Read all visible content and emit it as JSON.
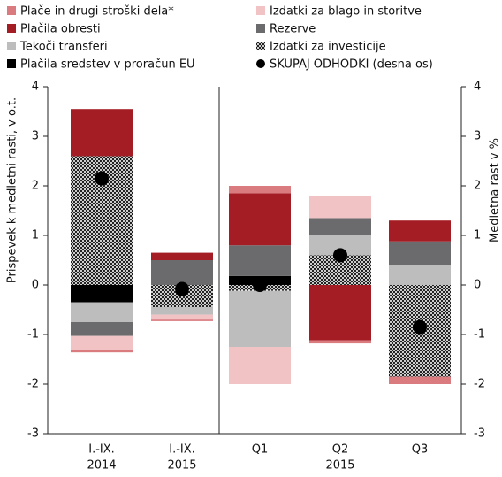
{
  "chart_data": {
    "type": "bar",
    "stacked": true,
    "categories": [
      "I.-IX.",
      "I.-IX.",
      "Q1",
      "Q2",
      "Q3"
    ],
    "category_group_labels": [
      "2014",
      "2015",
      null,
      "2015",
      null
    ],
    "ylabel": "Prispevek k medletni rasti, v o.t.",
    "y2label": "Medletna rast v %",
    "ylim": [
      -3,
      4
    ],
    "yticks": [
      -3,
      -2,
      -1,
      0,
      1,
      2,
      3,
      4
    ],
    "y2lim": [
      -3,
      4
    ],
    "y2ticks": [
      -3,
      -2,
      -1,
      0,
      1,
      2,
      3,
      4
    ],
    "series": [
      {
        "name": "Plače in drugi stroški dela*",
        "color": "#d97b7f",
        "values": [
          -0.05,
          -0.03,
          0.15,
          -0.06,
          -0.15
        ]
      },
      {
        "name": "Izdatki za blago in storitve",
        "color": "#f2c3c4",
        "values": [
          -0.28,
          -0.1,
          -0.75,
          0.45,
          0
        ]
      },
      {
        "name": "Plačila obresti",
        "color": "#a51d24",
        "values": [
          0.95,
          0.15,
          1.05,
          -1.12,
          0.42
        ]
      },
      {
        "name": "Rezerve",
        "color": "#6b6b6d",
        "values": [
          -0.28,
          0.5,
          0.62,
          0.35,
          0.48
        ]
      },
      {
        "name": "Tekoči transferi",
        "color": "#bdbdbd",
        "values": [
          -0.4,
          -0.15,
          -1.13,
          0.4,
          0.4
        ]
      },
      {
        "name": "Izdatki za investicije",
        "color": "hatch",
        "values": [
          2.6,
          -0.45,
          -0.12,
          0.6,
          -1.85
        ]
      },
      {
        "name": "Plačila sredstev v proračun EU",
        "color": "#000000",
        "values": [
          -0.35,
          0,
          0.18,
          0,
          0
        ]
      },
      {
        "name": "SKUPAJ ODHODKI (desna os)",
        "color": "#000000",
        "type": "scatter",
        "axis": "y2",
        "values": [
          2.15,
          -0.08,
          0.0,
          0.6,
          -0.85
        ]
      }
    ]
  }
}
